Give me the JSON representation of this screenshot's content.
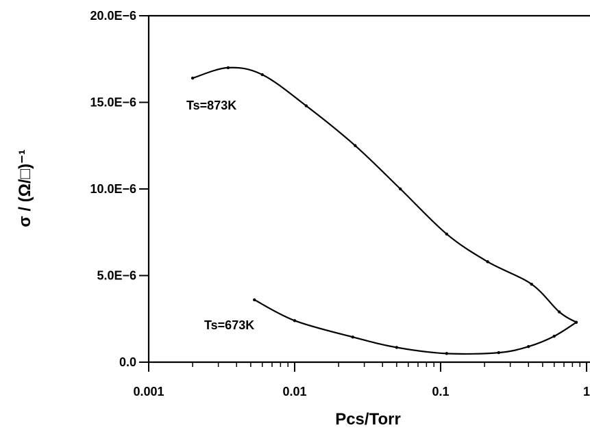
{
  "chart_data": {
    "type": "line",
    "title": "",
    "xlabel": "Pcs/Torr",
    "ylabel": "σ / (Ω/□)⁻¹",
    "x_scale": "log",
    "xlim": [
      0.001,
      1
    ],
    "ylim": [
      0,
      2e-05
    ],
    "x_ticks": [
      {
        "value": 0.001,
        "label": "0.001"
      },
      {
        "value": 0.01,
        "label": "0.01"
      },
      {
        "value": 0.1,
        "label": "0.1"
      },
      {
        "value": 1,
        "label": "1"
      }
    ],
    "y_ticks": [
      {
        "value": 0,
        "label": "0.0"
      },
      {
        "value": 5e-06,
        "label": "5.0E−6"
      },
      {
        "value": 1e-05,
        "label": "10.0E−6"
      },
      {
        "value": 1.5e-05,
        "label": "15.0E−6"
      },
      {
        "value": 2e-05,
        "label": "20.0E−6"
      }
    ],
    "grid": false,
    "series": [
      {
        "name": "Ts=873K",
        "x": [
          0.002,
          0.0035,
          0.006,
          0.012,
          0.026,
          0.053,
          0.11,
          0.21,
          0.42,
          0.65,
          0.85
        ],
        "y": [
          1.64e-05,
          1.7e-05,
          1.66e-05,
          1.48e-05,
          1.25e-05,
          1e-05,
          7.4e-06,
          5.8e-06,
          4.5e-06,
          2.9e-06,
          2.3e-06
        ]
      },
      {
        "name": "Ts=673K",
        "x": [
          0.0053,
          0.01,
          0.025,
          0.05,
          0.11,
          0.25,
          0.4,
          0.6,
          0.85
        ],
        "y": [
          3.6e-06,
          2.4e-06,
          1.45e-06,
          8.5e-07,
          5e-07,
          5.5e-07,
          9e-07,
          1.5e-06,
          2.3e-06
        ]
      }
    ],
    "annotations": [
      {
        "text": "Ts=873K",
        "series": 0
      },
      {
        "text": "Ts=673K",
        "series": 1
      }
    ]
  }
}
